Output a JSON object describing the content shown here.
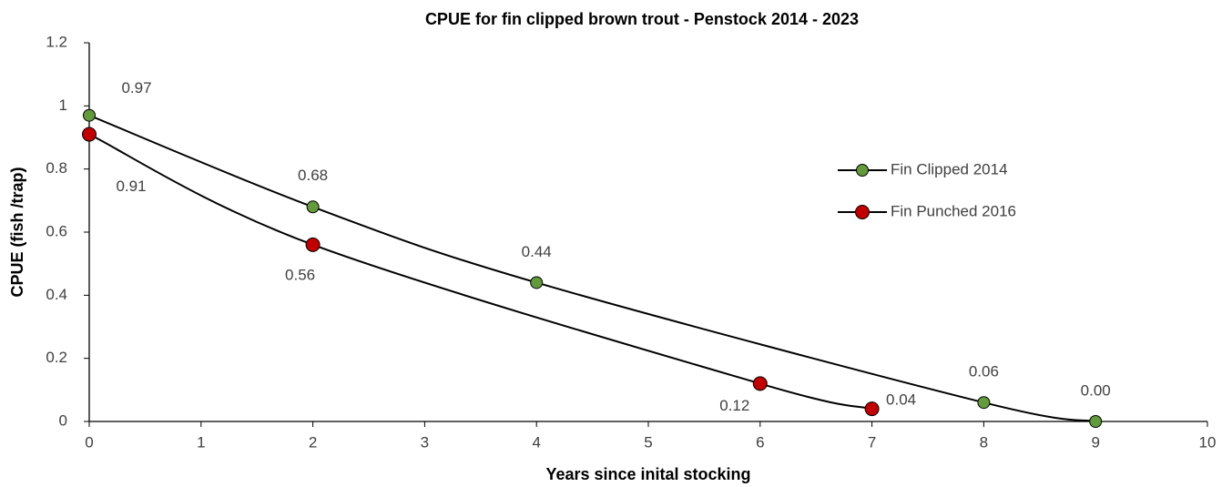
{
  "chart_data": {
    "type": "scatter",
    "title": "CPUE for fin clipped brown trout - Penstock 2014 - 2023",
    "x_label": "Years since inital stocking",
    "y_label": "CPUE (fish /trap)",
    "xlim": [
      0,
      10
    ],
    "xticks": [
      0,
      1,
      2,
      3,
      4,
      5,
      6,
      7,
      8,
      9,
      10
    ],
    "ylim": [
      0,
      1.2
    ],
    "yticks": [
      0,
      0.2,
      0.4,
      0.6,
      0.8,
      1,
      1.2
    ],
    "grid": false,
    "smooth": true,
    "legend": "right",
    "series": [
      {
        "name": "Fin Clipped 2014",
        "color": "#639a3c",
        "x": [
          0,
          2,
          4,
          8,
          9
        ],
        "values": [
          0.97,
          0.68,
          0.44,
          0.06,
          0
        ],
        "value_labels": [
          "0.97",
          "0.68",
          "0.44",
          "0.06",
          "0.00"
        ]
      },
      {
        "name": "Fin Punched 2016",
        "color": "#c00000",
        "x": [
          0,
          2,
          6,
          7
        ],
        "values": [
          0.91,
          0.56,
          0.12,
          0.04
        ],
        "value_labels": [
          "0.91",
          "0.56",
          "0.12",
          "0.04"
        ]
      }
    ]
  }
}
